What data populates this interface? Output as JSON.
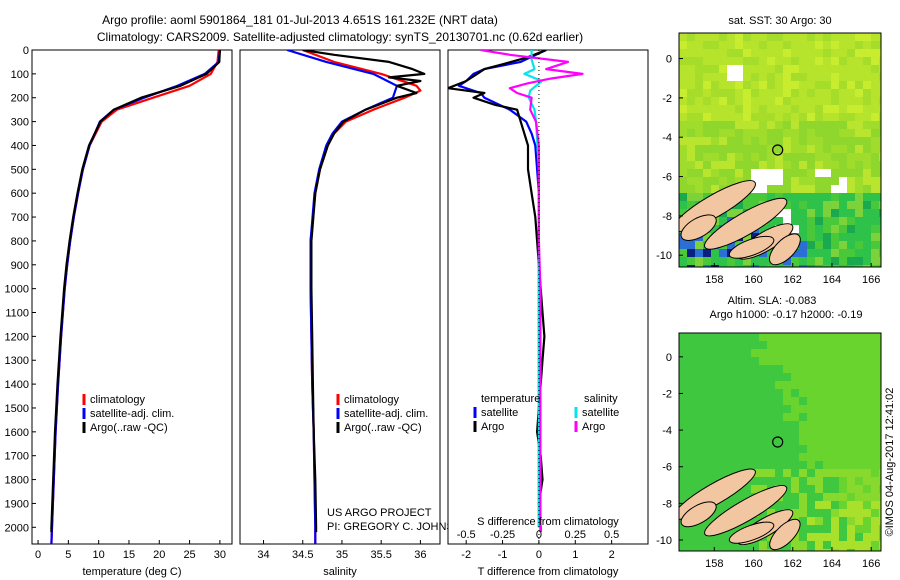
{
  "title": {
    "line1": "Argo profile: aoml 5901864_181 01-Jul-2013 4.651S 161.232E (NRT data)",
    "line2": "Climatology: CARS2009. Satellite-adjusted climatology: synTS_20130701.nc (0.62d earlier)"
  },
  "colors": {
    "climatology": "#ff0000",
    "satellite": "#0000ff",
    "argo": "#000000",
    "sal_satellite": "#00e5ee",
    "sal_argo": "#ff00ff",
    "map_green": "#3fd23f",
    "land": "#f2c6a0"
  },
  "chart_data": [
    {
      "type": "line",
      "name": "temperature-profile",
      "xlabel": "temperature (deg C)",
      "ylabel": "",
      "xlim": [
        -1,
        32
      ],
      "ylim": [
        2070,
        0
      ],
      "xticks": [
        0,
        5,
        10,
        15,
        20,
        25,
        30
      ],
      "yticks": [
        0,
        100,
        200,
        300,
        400,
        500,
        600,
        700,
        800,
        900,
        1000,
        1100,
        1200,
        1300,
        1400,
        1500,
        1600,
        1700,
        1800,
        1900,
        2000
      ],
      "legend": [
        "climatology",
        "satellite-adj. clim.",
        "Argo(..raw -QC)"
      ],
      "series": [
        {
          "name": "climatology",
          "color": "#ff0000",
          "depth": [
            0,
            50,
            100,
            150,
            200,
            250,
            300,
            400,
            500,
            600,
            700,
            800,
            900,
            1000,
            1200,
            1400,
            1600,
            1800,
            2000,
            2070
          ],
          "values": [
            29.8,
            29.6,
            28.5,
            25,
            19,
            13,
            10.5,
            8.5,
            7.4,
            6.6,
            5.9,
            5.3,
            4.8,
            4.4,
            3.8,
            3.3,
            2.9,
            2.6,
            2.3,
            2.2
          ]
        },
        {
          "name": "satellite-adj. clim.",
          "color": "#0000ff",
          "depth": [
            0,
            50,
            100,
            150,
            200,
            250,
            300,
            400,
            500,
            600,
            700,
            800,
            900,
            1000,
            1200,
            1400,
            1600,
            1800,
            2000,
            2070
          ],
          "values": [
            30,
            29.8,
            27.5,
            23,
            17.5,
            12.5,
            10.2,
            8.5,
            7.4,
            6.6,
            5.9,
            5.3,
            4.8,
            4.4,
            3.8,
            3.3,
            2.9,
            2.6,
            2.3,
            2.2
          ]
        },
        {
          "name": "Argo(..raw -QC)",
          "color": "#000000",
          "depth": [
            0,
            50,
            100,
            150,
            200,
            250,
            300,
            400,
            500,
            600,
            700,
            800,
            900,
            1000,
            1200,
            1400,
            1600,
            1800,
            2000,
            2020
          ],
          "values": [
            30,
            29.9,
            27.8,
            23.5,
            17,
            12.5,
            10.3,
            8.4,
            7.3,
            6.5,
            5.8,
            5.2,
            4.7,
            4.3,
            3.7,
            3.2,
            2.8,
            2.5,
            2.2,
            2.2
          ]
        }
      ]
    },
    {
      "type": "line",
      "name": "salinity-profile",
      "xlabel": "salinity",
      "ylabel": "",
      "xlim": [
        33.7,
        36.25
      ],
      "ylim": [
        2070,
        0
      ],
      "xticks": [
        34,
        34.5,
        35,
        35.5,
        36
      ],
      "legend": [
        "climatology",
        "satellite-adj. clim.",
        "Argo(..raw -QC)"
      ],
      "annotations": [
        "US ARGO PROJECT",
        "PI: GREGORY C. JOHNSON"
      ],
      "series": [
        {
          "name": "climatology",
          "color": "#ff0000",
          "depth": [
            0,
            50,
            100,
            150,
            170,
            200,
            250,
            300,
            350,
            400,
            500,
            600,
            800,
            1000,
            1200,
            1400,
            1600,
            1800,
            2000,
            2070
          ],
          "values": [
            34.5,
            34.9,
            35.5,
            35.95,
            36,
            35.8,
            35.4,
            35.05,
            34.9,
            34.82,
            34.72,
            34.66,
            34.6,
            34.6,
            34.61,
            34.62,
            34.64,
            34.65,
            34.66,
            34.66
          ]
        },
        {
          "name": "satellite-adj. clim.",
          "color": "#0000ff",
          "depth": [
            0,
            50,
            100,
            150,
            200,
            250,
            300,
            350,
            400,
            500,
            600,
            800,
            1000,
            1200,
            1400,
            1600,
            1800,
            2000,
            2070
          ],
          "values": [
            34.3,
            34.8,
            35.4,
            35.7,
            35.65,
            35.3,
            35,
            34.88,
            34.8,
            34.71,
            34.65,
            34.6,
            34.6,
            34.61,
            34.62,
            34.64,
            34.65,
            34.66,
            34.66
          ]
        },
        {
          "name": "Argo(..raw -QC)",
          "color": "#000000",
          "depth": [
            0,
            20,
            50,
            80,
            100,
            115,
            130,
            150,
            180,
            200,
            250,
            300,
            350,
            400,
            500,
            600,
            800,
            1000,
            1200,
            1400,
            1600,
            1800,
            2000,
            2020
          ],
          "values": [
            34.5,
            34.9,
            35.6,
            35.9,
            36.05,
            35.6,
            36,
            35.7,
            35.95,
            35.7,
            35.3,
            35.02,
            34.9,
            34.82,
            34.72,
            34.66,
            34.61,
            34.61,
            34.62,
            34.63,
            34.64,
            34.66,
            34.67,
            34.67
          ]
        }
      ]
    },
    {
      "type": "line",
      "name": "difference-profile",
      "xlabel": "T difference from climatology",
      "xlabel_top": "S difference from climatology",
      "xlim": [
        -2.5,
        3
      ],
      "ylim": [
        2070,
        0
      ],
      "xticks": [
        -2,
        -1,
        0,
        1,
        2
      ],
      "xticks_top": [
        -0.5,
        -0.25,
        0,
        0.25,
        0.5
      ],
      "xlim_top": [
        -0.625,
        0.75
      ],
      "legend_titles": [
        "temperature",
        "salinity"
      ],
      "legend": [
        "satellite",
        "Argo",
        "satellite",
        "Argo"
      ],
      "series": [
        {
          "name": "temperature satellite",
          "color": "#0000ff",
          "axis": "T",
          "depth": [
            0,
            50,
            80,
            100,
            130,
            150,
            180,
            200,
            250,
            300,
            350,
            400,
            500,
            600,
            800,
            1000,
            1500,
            2000
          ],
          "values": [
            0.2,
            -0.5,
            -1.5,
            -1.8,
            -2,
            -2.2,
            -1.6,
            -1.5,
            -0.8,
            -0.35,
            -0.2,
            -0.1,
            -0.05,
            0,
            0,
            0,
            0,
            0
          ]
        },
        {
          "name": "temperature Argo",
          "color": "#000000",
          "axis": "T",
          "depth": [
            0,
            30,
            60,
            80,
            100,
            130,
            160,
            180,
            200,
            230,
            250,
            300,
            400,
            500,
            600,
            700,
            800,
            900,
            1000,
            1100,
            1200,
            1300,
            1400,
            1500,
            1600,
            1700,
            1800,
            1900,
            2000,
            2020
          ],
          "values": [
            0.2,
            -0.3,
            -1,
            -1.5,
            -1.7,
            -2,
            -2.5,
            -1.5,
            -1.8,
            -1.2,
            -0.6,
            -0.5,
            -0.3,
            -0.3,
            -0.2,
            -0.1,
            -0.05,
            0,
            0.05,
            0.1,
            0.15,
            0.1,
            0.05,
            0,
            -0.05,
            0.05,
            0.1,
            0,
            0.05,
            0.05
          ]
        },
        {
          "name": "salinity satellite",
          "color": "#00e5ee",
          "axis": "S",
          "depth": [
            0,
            40,
            80,
            100,
            130,
            170,
            200,
            250,
            300,
            400,
            500,
            600,
            800,
            1000,
            1500,
            2000
          ],
          "values": [
            -0.05,
            -0.05,
            -0.03,
            -0.1,
            0.02,
            -0.06,
            -0.07,
            -0.03,
            -0.02,
            -0.01,
            0,
            0,
            0,
            0,
            0,
            0
          ]
        },
        {
          "name": "salinity Argo",
          "color": "#ff00ff",
          "axis": "S",
          "depth": [
            0,
            20,
            50,
            80,
            100,
            120,
            140,
            160,
            180,
            200,
            250,
            300,
            400,
            500,
            600,
            800,
            1000,
            1200,
            1400,
            1600,
            1800,
            2000,
            2020
          ],
          "values": [
            -0.4,
            -0.2,
            0.2,
            0.05,
            0.3,
            0.08,
            -0.08,
            -0.2,
            -0.15,
            -0.05,
            -0.06,
            -0.02,
            0,
            0,
            0,
            0,
            0.01,
            0.01,
            0.01,
            0.01,
            0.01,
            0.01,
            0.01
          ]
        }
      ]
    },
    {
      "type": "heatmap",
      "name": "sst-map",
      "title": "sat. SST: 30 Argo: 30",
      "xticks": [
        158,
        160,
        162,
        164,
        166
      ],
      "yticks": [
        0,
        -2,
        -4,
        -6,
        -8,
        -10
      ],
      "xlim": [
        156.2,
        166.5
      ],
      "ylim": [
        -10.6,
        1.3
      ],
      "marker": {
        "lon": 161.232,
        "lat": -4.651
      }
    },
    {
      "type": "heatmap",
      "name": "sla-map",
      "title": "Altim. SLA: -0.083",
      "subtitle": "Argo h1000: -0.17 h2000: -0.19",
      "xticks": [
        158,
        160,
        162,
        164,
        166
      ],
      "yticks": [
        0,
        -2,
        -4,
        -6,
        -8,
        -10
      ],
      "xlim": [
        156.2,
        166.5
      ],
      "ylim": [
        -10.6,
        1.3
      ],
      "marker": {
        "lon": 161.232,
        "lat": -4.651
      }
    }
  ],
  "credit": "©IMOS 04-Aug-2017 12:41:02"
}
